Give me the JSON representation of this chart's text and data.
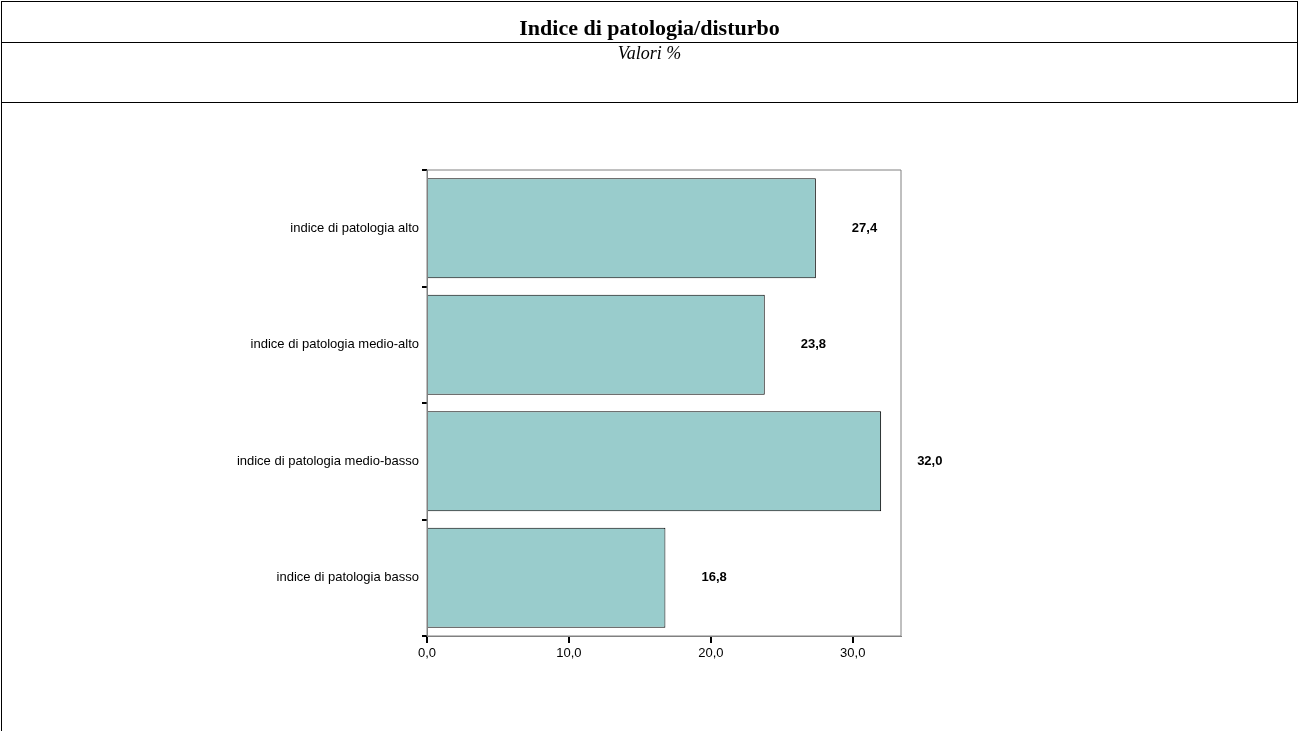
{
  "chart_data": {
    "type": "bar",
    "orientation": "horizontal",
    "title": "Indice di patologia/disturbo",
    "subtitle": "Valori %",
    "categories": [
      "indice di patologia alto",
      "indice di patologia medio-alto",
      "indice di patologia medio-basso",
      "indice di patologia basso"
    ],
    "values": [
      27.4,
      23.8,
      32.0,
      16.8
    ],
    "value_labels": [
      "27,4",
      "23,8",
      "32,0",
      "16,8"
    ],
    "color": "#99cccc",
    "xlim": [
      0,
      33.4
    ],
    "xticks": [
      {
        "value": 0,
        "label": "0,0"
      },
      {
        "value": 10,
        "label": "10,0"
      },
      {
        "value": 20,
        "label": "20,0"
      },
      {
        "value": 30,
        "label": "30,0"
      }
    ],
    "legend": false
  }
}
